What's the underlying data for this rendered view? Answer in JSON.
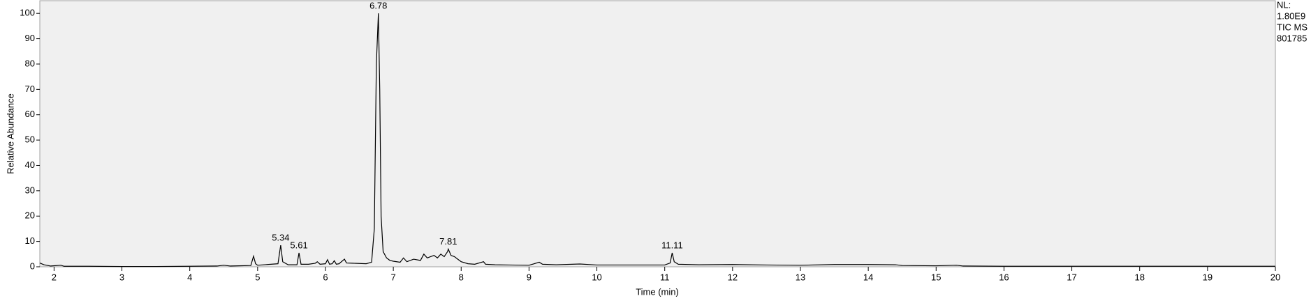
{
  "chart_data": {
    "type": "line",
    "x_label": "Time (min)",
    "y_label": "Relative Abundance",
    "info": [
      "NL:",
      "1.80E9",
      "TIC  MS",
      "801785"
    ],
    "xlim": [
      1.79,
      20
    ],
    "ylim": [
      0,
      105
    ],
    "xticks": [
      2,
      3,
      4,
      5,
      6,
      7,
      8,
      9,
      10,
      11,
      12,
      13,
      14,
      15,
      16,
      17,
      18,
      19,
      20
    ],
    "yticks": [
      0,
      10,
      20,
      30,
      40,
      50,
      60,
      70,
      80,
      90,
      100
    ],
    "color": "#000000",
    "x": [
      1.79,
      1.85,
      1.95,
      2.1,
      2.15,
      2.5,
      3.0,
      3.5,
      4.0,
      4.4,
      4.5,
      4.6,
      4.9,
      4.94,
      4.97,
      5.0,
      5.3,
      5.34,
      5.37,
      5.45,
      5.58,
      5.61,
      5.64,
      5.75,
      5.85,
      5.88,
      5.92,
      6.0,
      6.03,
      6.06,
      6.1,
      6.13,
      6.16,
      6.2,
      6.28,
      6.31,
      6.4,
      6.5,
      6.6,
      6.68,
      6.72,
      6.75,
      6.78,
      6.8,
      6.82,
      6.85,
      6.9,
      6.95,
      7.0,
      7.05,
      7.1,
      7.15,
      7.2,
      7.3,
      7.4,
      7.45,
      7.5,
      7.55,
      7.6,
      7.65,
      7.7,
      7.75,
      7.8,
      7.81,
      7.85,
      7.9,
      7.95,
      8.0,
      8.1,
      8.2,
      8.33,
      8.36,
      8.5,
      8.7,
      9.0,
      9.15,
      9.2,
      9.4,
      9.75,
      10.0,
      10.5,
      11.0,
      11.08,
      11.11,
      11.14,
      11.2,
      11.5,
      12.0,
      12.5,
      13.0,
      13.5,
      14.0,
      14.4,
      14.5,
      15.0,
      15.3,
      15.4,
      16,
      17,
      18,
      19,
      20
    ],
    "values": [
      1.5,
      0.8,
      0.3,
      0.6,
      0.2,
      0.2,
      0.1,
      0.1,
      0.2,
      0.3,
      0.6,
      0.3,
      0.5,
      4.2,
      1.2,
      0.6,
      1.2,
      8.5,
      2.0,
      0.8,
      0.8,
      5.5,
      1.0,
      1.0,
      1.4,
      2.0,
      1.0,
      1.2,
      2.8,
      1.0,
      1.2,
      2.4,
      1.0,
      1.2,
      3.0,
      1.5,
      1.4,
      1.3,
      1.2,
      1.8,
      15,
      80,
      100,
      70,
      20,
      6,
      3.5,
      2.5,
      2.2,
      2.0,
      1.8,
      3.5,
      2.0,
      3.0,
      2.5,
      5.0,
      3.5,
      4.0,
      4.5,
      3.5,
      5.0,
      4.0,
      6.0,
      7.0,
      4.5,
      4.0,
      3.0,
      2.0,
      1.2,
      1.0,
      2.0,
      1.0,
      0.8,
      0.7,
      0.6,
      1.8,
      1.0,
      0.8,
      1.1,
      0.7,
      0.7,
      0.7,
      1.5,
      5.5,
      2.0,
      1.0,
      0.8,
      0.9,
      0.7,
      0.6,
      0.9,
      0.9,
      0.8,
      0.5,
      0.4,
      0.6,
      0.3,
      0.2,
      0.2,
      0.2,
      0.2,
      0.2
    ],
    "annotations": [
      {
        "x": 5.34,
        "y": 8.5
      },
      {
        "x": 5.61,
        "y": 5.5
      },
      {
        "x": 6.78,
        "y": 100
      },
      {
        "x": 7.81,
        "y": 7.0
      },
      {
        "x": 11.11,
        "y": 5.5
      }
    ]
  }
}
